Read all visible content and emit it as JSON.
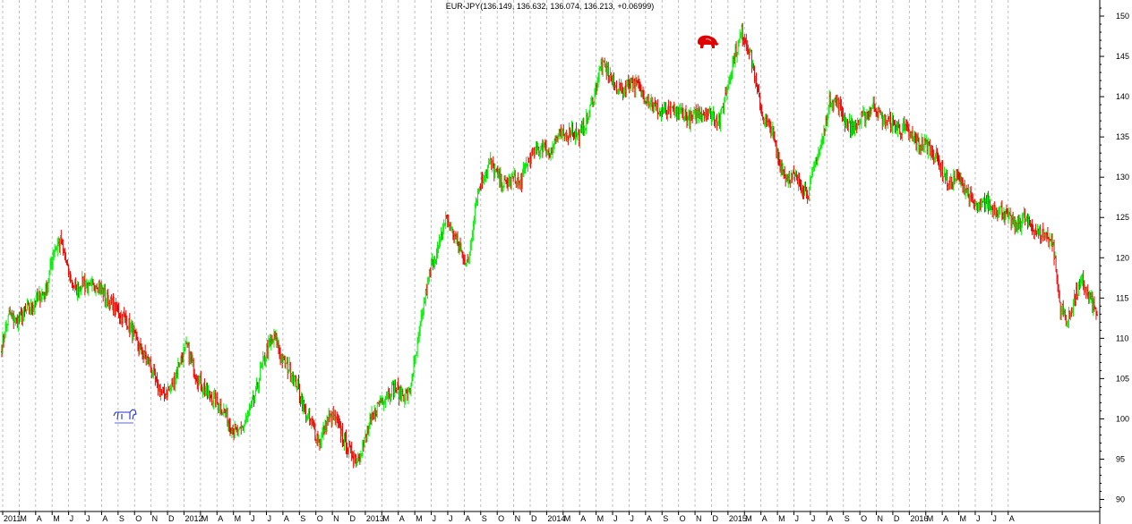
{
  "chart_data": {
    "type": "ohlc",
    "title": "EUR-JPY(136.149, 136.632, 136.074, 136.213, +0.06999)",
    "xlabel": "",
    "ylabel": "",
    "ylim": [
      88.5,
      152
    ],
    "y_ticks": [
      90,
      95,
      100,
      105,
      110,
      115,
      120,
      125,
      130,
      135,
      140,
      145,
      150
    ],
    "x_tick_labels": [
      "2011",
      "M",
      "A",
      "M",
      "J",
      "J",
      "A",
      "S",
      "O",
      "N",
      "D",
      "2012",
      "M",
      "A",
      "M",
      "J",
      "J",
      "A",
      "S",
      "O",
      "N",
      "D",
      "2013",
      "M",
      "A",
      "M",
      "J",
      "J",
      "A",
      "S",
      "O",
      "N",
      "D",
      "2014",
      "M",
      "A",
      "M",
      "J",
      "J",
      "A",
      "S",
      "O",
      "N",
      "D",
      "2015",
      "M",
      "A",
      "M",
      "J",
      "J",
      "A",
      "S",
      "O",
      "N",
      "D",
      "2016",
      "M",
      "A",
      "M",
      "J",
      "J",
      "A"
    ],
    "grid": true,
    "up_color": "#00ee00",
    "down_color": "#ee0000",
    "grid_color": "#b0b0b0",
    "series": [
      {
        "values": [
          109,
          113,
          112,
          113,
          114,
          115,
          116,
          121,
          122,
          118,
          116,
          117,
          116,
          117,
          115,
          114,
          113,
          112,
          110,
          108,
          107,
          104,
          103,
          104,
          107,
          109,
          106,
          104,
          103,
          102,
          101,
          99,
          98,
          100,
          102,
          106,
          109,
          110,
          107,
          106,
          104,
          101,
          99,
          97,
          100,
          100,
          98,
          96,
          95,
          97,
          100,
          102,
          103,
          104,
          103,
          103,
          108,
          114,
          119,
          121,
          125,
          123,
          121,
          119,
          127,
          130,
          132,
          130,
          129,
          130,
          129,
          132,
          133,
          134,
          133,
          135,
          135,
          136,
          135,
          137,
          140,
          144,
          143,
          141,
          141,
          142,
          141,
          140,
          139,
          138,
          138,
          138,
          138,
          137,
          138,
          138,
          138,
          137,
          141,
          145,
          148,
          146,
          141,
          137,
          136,
          132,
          130,
          130,
          129,
          128,
          132,
          135,
          140,
          139,
          137,
          136,
          137,
          138,
          139,
          137,
          137,
          136,
          136,
          135,
          134,
          134,
          133,
          131,
          129,
          130,
          129,
          127,
          126,
          127,
          126,
          126,
          125,
          124,
          125,
          124,
          123,
          123,
          122,
          114,
          112,
          115,
          117,
          115,
          113
        ]
      }
    ]
  }
}
